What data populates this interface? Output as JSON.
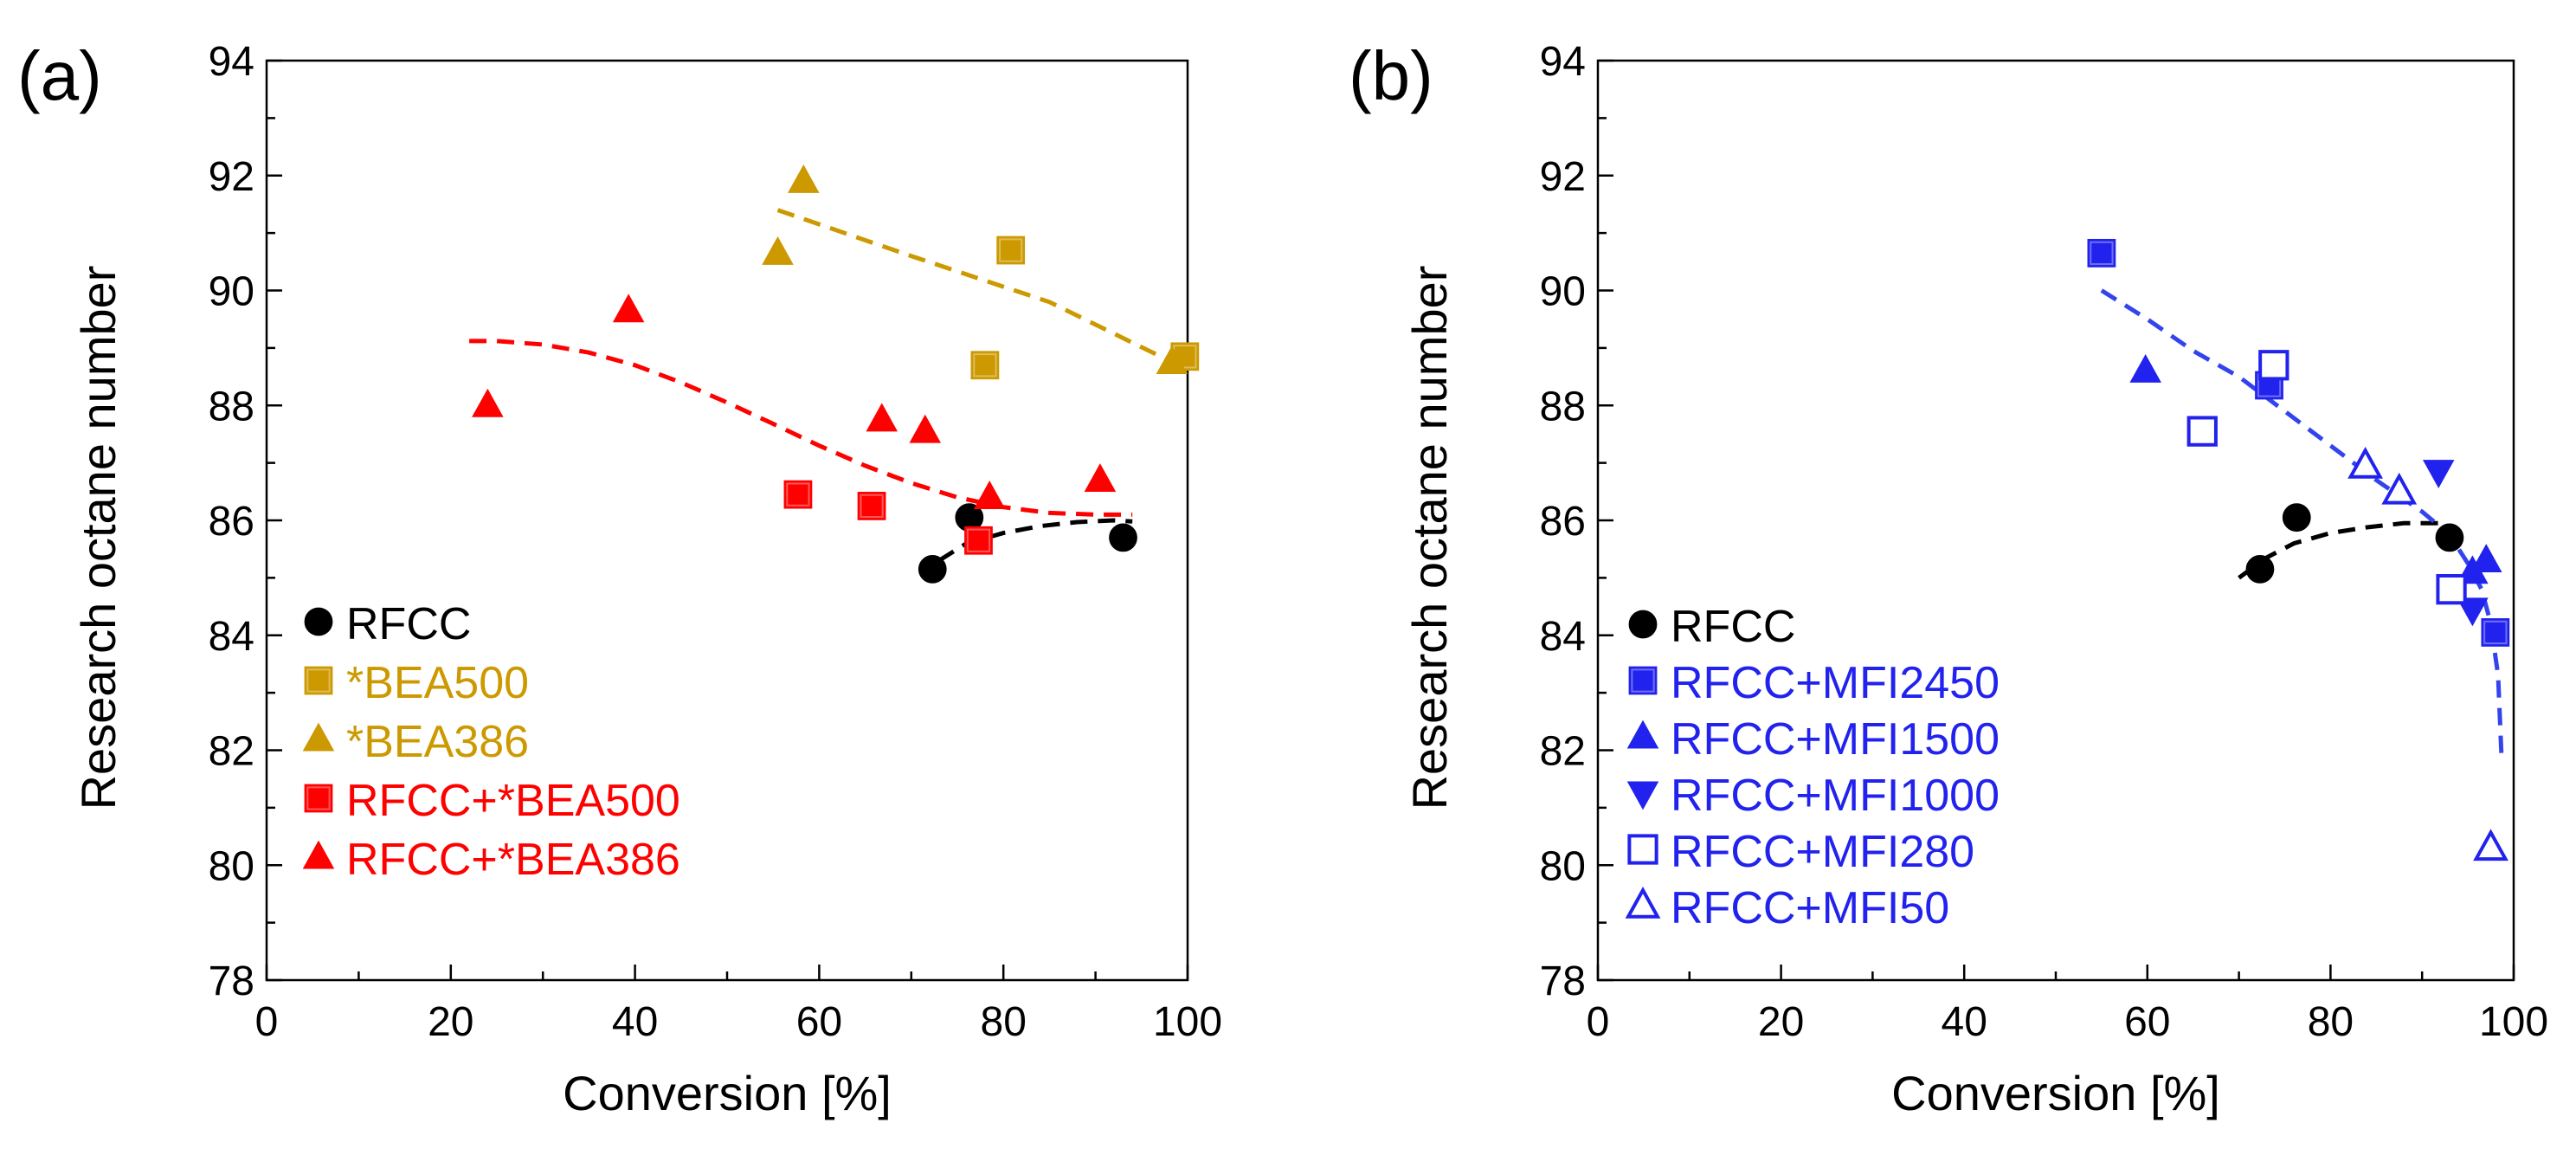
{
  "colors": {
    "rfcc": "#000000",
    "bea": "#cc9900",
    "rfcc_bea": "#ff0000",
    "mfi": "#2222ee",
    "mfi_fit": "#3344ee"
  },
  "chart_data": [
    {
      "type": "scatter",
      "panel_label": "(a)",
      "xlabel": "Conversion [%]",
      "ylabel": "Research octane number",
      "xlim": [
        0,
        100
      ],
      "ylim": [
        78,
        94
      ],
      "xticks": [
        0,
        20,
        40,
        60,
        80,
        100
      ],
      "yticks": [
        78,
        80,
        82,
        84,
        86,
        88,
        90,
        92,
        94
      ],
      "grid": false,
      "legend_position": "lower-left",
      "series": [
        {
          "name": "RFCC",
          "marker": "circle",
          "filled": true,
          "color": "#000000",
          "x": [
            72.3,
            76.3,
            93.0
          ],
          "y": [
            85.15,
            86.05,
            85.7
          ]
        },
        {
          "name": "*BEA500",
          "marker": "square",
          "filled": true,
          "color": "#cc9900",
          "x": [
            80.8,
            78.0,
            99.7
          ],
          "y": [
            90.7,
            88.7,
            88.85
          ]
        },
        {
          "name": "*BEA386",
          "marker": "triangle-up",
          "filled": true,
          "color": "#cc9900",
          "x": [
            58.3,
            55.5,
            98.3
          ],
          "y": [
            91.9,
            90.65,
            88.75
          ]
        },
        {
          "name": "RFCC+*BEA500",
          "marker": "square",
          "filled": true,
          "color": "#ff0000",
          "x": [
            57.7,
            65.7,
            77.3
          ],
          "y": [
            86.45,
            86.25,
            85.65
          ]
        },
        {
          "name": "RFCC+*BEA386",
          "marker": "triangle-up",
          "filled": true,
          "color": "#ff0000",
          "x": [
            24.0,
            39.3,
            66.8,
            71.5,
            78.5,
            90.5
          ],
          "y": [
            88.0,
            89.65,
            87.75,
            87.55,
            86.4,
            86.7
          ]
        }
      ],
      "trendlines": [
        {
          "name": "RFCC fit",
          "style": "dashed",
          "color": "#000000",
          "x": [
            73,
            76,
            80,
            84,
            88,
            92,
            94
          ],
          "y": [
            85.3,
            85.6,
            85.78,
            85.9,
            85.97,
            86.0,
            85.98
          ]
        },
        {
          "name": "*BEA fit",
          "style": "dashed",
          "color": "#cc9900",
          "x": [
            55.5,
            70,
            85,
            99
          ],
          "y": [
            91.4,
            90.6,
            89.8,
            88.7
          ]
        },
        {
          "name": "RFCC+*BEA fit",
          "style": "dashed",
          "color": "#ff0000",
          "x": [
            22,
            25,
            30,
            35,
            40,
            45,
            50,
            55,
            60,
            65,
            70,
            75,
            80,
            85,
            90,
            94
          ],
          "y": [
            89.12,
            89.12,
            89.06,
            88.92,
            88.7,
            88.4,
            88.05,
            87.68,
            87.3,
            86.95,
            86.65,
            86.4,
            86.23,
            86.13,
            86.1,
            86.1
          ]
        }
      ],
      "legend": [
        {
          "label": "RFCC",
          "marker": "circle",
          "color": "#000000"
        },
        {
          "label": "*BEA500",
          "marker": "square",
          "color": "#cc9900"
        },
        {
          "label": "*BEA386",
          "marker": "triangle-up",
          "color": "#cc9900"
        },
        {
          "label": "RFCC+*BEA500",
          "marker": "square",
          "color": "#ff0000"
        },
        {
          "label": "RFCC+*BEA386",
          "marker": "triangle-up",
          "color": "#ff0000"
        }
      ]
    },
    {
      "type": "scatter",
      "panel_label": "(b)",
      "xlabel": "Conversion [%]",
      "ylabel": "Research octane number",
      "xlim": [
        0,
        100
      ],
      "ylim": [
        78,
        94
      ],
      "xticks": [
        0,
        20,
        40,
        60,
        80,
        100
      ],
      "yticks": [
        78,
        80,
        82,
        84,
        86,
        88,
        90,
        92,
        94
      ],
      "grid": false,
      "legend_position": "lower-left",
      "series": [
        {
          "name": "RFCC",
          "marker": "circle",
          "filled": true,
          "color": "#000000",
          "x": [
            72.3,
            76.3,
            93.0
          ],
          "y": [
            85.15,
            86.05,
            85.7
          ]
        },
        {
          "name": "RFCC+MFI2450",
          "marker": "square",
          "filled": true,
          "color": "#2222ee",
          "x": [
            55.0,
            73.3,
            98.0
          ],
          "y": [
            90.65,
            88.35,
            84.05
          ]
        },
        {
          "name": "RFCC+MFI1500",
          "marker": "triangle-up",
          "filled": true,
          "color": "#2222ee",
          "x": [
            59.8,
            95.5,
            97.0
          ],
          "y": [
            88.6,
            85.1,
            85.3
          ]
        },
        {
          "name": "RFCC+MFI1000",
          "marker": "triangle-down",
          "filled": true,
          "color": "#2222ee",
          "x": [
            91.8,
            95.5
          ],
          "y": [
            86.85,
            84.45
          ]
        },
        {
          "name": "RFCC+MFI280",
          "marker": "square",
          "filled": false,
          "color": "#2222ee",
          "x": [
            66.0,
            73.8,
            93.2
          ],
          "y": [
            87.55,
            88.7,
            84.8
          ]
        },
        {
          "name": "RFCC+MFI50",
          "marker": "triangle-up",
          "filled": false,
          "color": "#2222ee",
          "x": [
            83.8,
            87.5,
            97.5
          ],
          "y": [
            86.95,
            86.5,
            80.3
          ]
        }
      ],
      "trendlines": [
        {
          "name": "RFCC fit",
          "style": "dashed",
          "color": "#000000",
          "x": [
            70,
            73,
            76,
            80,
            84,
            88,
            92
          ],
          "y": [
            85.0,
            85.35,
            85.6,
            85.78,
            85.88,
            85.95,
            85.95
          ]
        },
        {
          "name": "MFI fit",
          "style": "dashed",
          "color": "#3344ee",
          "x": [
            55,
            60,
            65,
            70,
            75,
            80,
            85,
            90,
            93,
            95,
            96.5,
            97.5,
            98.3,
            98.7
          ],
          "y": [
            90.0,
            89.5,
            88.95,
            88.5,
            87.9,
            87.3,
            86.7,
            86.15,
            85.75,
            85.25,
            84.8,
            84.2,
            83.3,
            81.8
          ]
        }
      ],
      "legend": [
        {
          "label": "RFCC",
          "marker": "circle",
          "filled": true,
          "color": "#000000"
        },
        {
          "label": "RFCC+MFI2450",
          "marker": "square",
          "filled": true,
          "color": "#2222ee"
        },
        {
          "label": "RFCC+MFI1500",
          "marker": "triangle-up",
          "filled": true,
          "color": "#2222ee"
        },
        {
          "label": "RFCC+MFI1000",
          "marker": "triangle-down",
          "filled": true,
          "color": "#2222ee"
        },
        {
          "label": "RFCC+MFI280",
          "marker": "square",
          "filled": false,
          "color": "#2222ee"
        },
        {
          "label": "RFCC+MFI50",
          "marker": "triangle-up",
          "filled": false,
          "color": "#2222ee"
        }
      ]
    }
  ]
}
